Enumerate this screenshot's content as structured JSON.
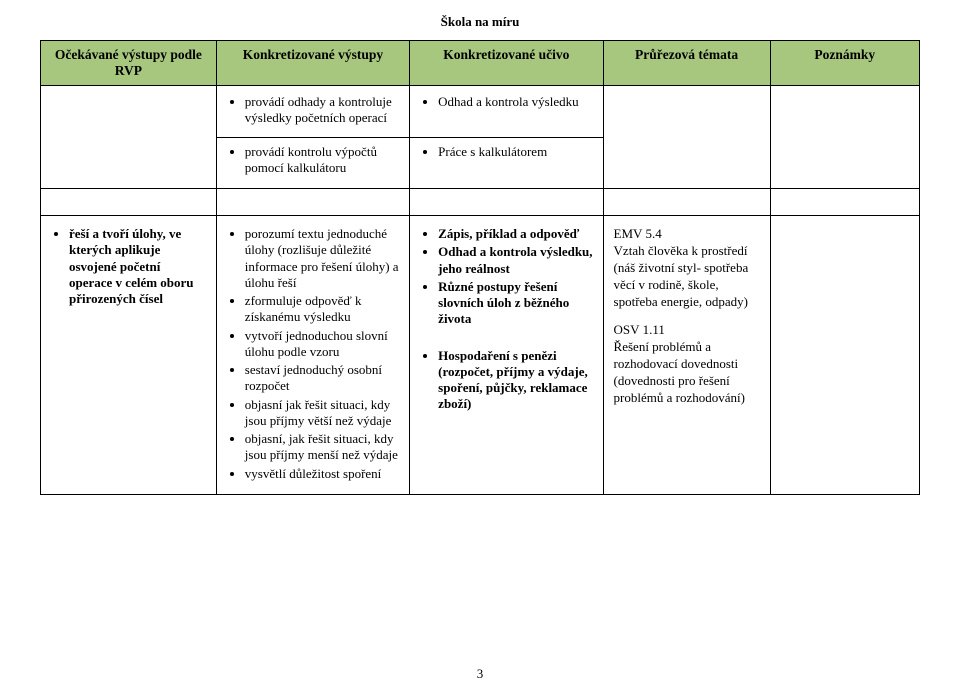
{
  "doc_header": "Škola na míru",
  "page_number": "3",
  "table": {
    "header_bg": "#a7c77f",
    "columns": [
      "Očekávané výstupy podle RVP",
      "Konkretizované výstupy",
      "Konkretizované učivo",
      "Průřezová témata",
      "Poznámky"
    ],
    "row1": {
      "c2": [
        "provádí odhady a kontroluje výsledky početních operací"
      ],
      "c3": [
        "Odhad a kontrola výsledku"
      ]
    },
    "row2": {
      "c2": [
        "provádí kontrolu výpočtů pomocí kalkulátoru"
      ],
      "c3": [
        "Práce s kalkulátorem"
      ]
    },
    "row3": {
      "c1": [
        "řeší a tvoří úlohy, ve kterých aplikuje osvojené početní operace v celém oboru přirozených čísel"
      ],
      "c2": [
        "porozumí textu jednoduché úlohy (rozlišuje důležité informace pro řešení úlohy) a úlohu řeší",
        "zformuluje odpověď k získanému výsledku",
        "vytvoří jednoduchou slovní úlohu podle vzoru",
        "sestaví jednoduchý osobní rozpočet",
        "objasní jak řešit situaci, kdy jsou příjmy větší než výdaje",
        "objasní, jak řešit situaci, kdy jsou příjmy menší než výdaje",
        "vysvětlí důležitost spoření"
      ],
      "c3": [
        {
          "text": "Zápis, příklad a odpověď",
          "bold": true
        },
        {
          "text": "Odhad a kontrola výsledku, jeho reálnost",
          "bold": true
        },
        {
          "text": "Různé postupy řešení slovních úloh z běžného života",
          "bold": true
        },
        {
          "text": "",
          "spacer": true
        },
        {
          "text": "Hospodaření s penězi (rozpočet, příjmy a výdaje, spoření, půjčky, reklamace zboží)",
          "bold": true
        }
      ],
      "c4": [
        "EMV 5.4",
        "Vztah člověka k prostředí",
        "(náš životní styl- spotřeba věcí v rodině, škole, spotřeba energie, odpady)",
        "",
        "OSV 1.11",
        "Řešení problémů a rozhodovací dovednosti (dovednosti pro řešení problémů a rozhodování)"
      ]
    }
  }
}
